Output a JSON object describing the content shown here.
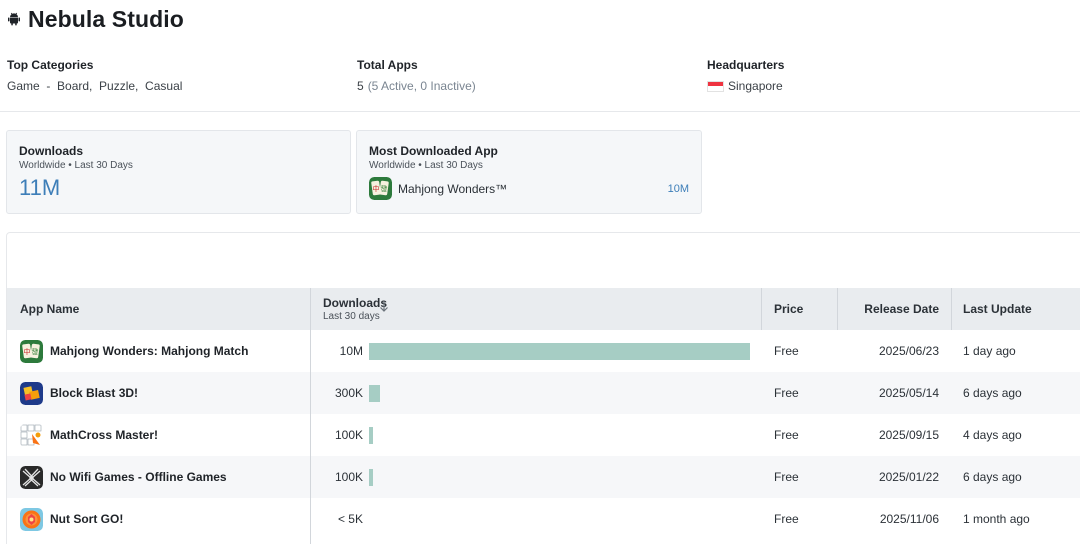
{
  "studio": {
    "name": "Nebula Studio",
    "icon": "android-icon"
  },
  "info": {
    "categories_label": "Top Categories",
    "categories_value": "Game  -  Board,  Puzzle,  Casual",
    "total_label": "Total Apps",
    "total_value": "5",
    "total_detail": "(5 Active, 0 Inactive)",
    "hq_label": "Headquarters",
    "hq_value": "Singapore",
    "hq_flag": "singapore-flag-icon"
  },
  "cards": {
    "downloads": {
      "title": "Downloads",
      "subtitle": "Worldwide • Last 30 Days",
      "value": "11M"
    },
    "most_downloaded": {
      "title": "Most Downloaded App",
      "subtitle": "Worldwide • Last 30 Days",
      "app": "Mahjong Wonders™",
      "value": "10M"
    }
  },
  "table": {
    "headers": {
      "app_name": "App Name",
      "downloads": "Downloads",
      "downloads_sub": "Last 30 days",
      "price": "Price",
      "release": "Release Date",
      "update": "Last Update"
    },
    "sort": "descending",
    "rows": [
      {
        "name": "Mahjong Wonders: Mahjong Match",
        "downloads": "10M",
        "bar_fraction": 1.0,
        "price": "Free",
        "release": "2025/06/23",
        "update": "1 day ago",
        "icon": "mahjong-icon"
      },
      {
        "name": "Block Blast 3D!",
        "downloads": "300K",
        "bar_fraction": 0.03,
        "price": "Free",
        "release": "2025/05/14",
        "update": "6 days ago",
        "icon": "blocks-icon"
      },
      {
        "name": "MathCross Master!",
        "downloads": "100K",
        "bar_fraction": 0.01,
        "price": "Free",
        "release": "2025/09/15",
        "update": "4 days ago",
        "icon": "mathcross-icon"
      },
      {
        "name": "No Wifi Games - Offline Games",
        "downloads": "100K",
        "bar_fraction": 0.01,
        "price": "Free",
        "release": "2025/01/22",
        "update": "6 days ago",
        "icon": "offline-games-icon"
      },
      {
        "name": "Nut Sort GO!",
        "downloads": "< 5K",
        "bar_fraction": 0.0,
        "price": "Free",
        "release": "2025/11/06",
        "update": "1 month ago",
        "icon": "nut-sort-icon"
      }
    ]
  },
  "colors": {
    "accent": "#3d7eb8",
    "bar": "#a6cdc4",
    "header_bg": "#e9ecef",
    "card_bg": "#f5f7f9"
  }
}
